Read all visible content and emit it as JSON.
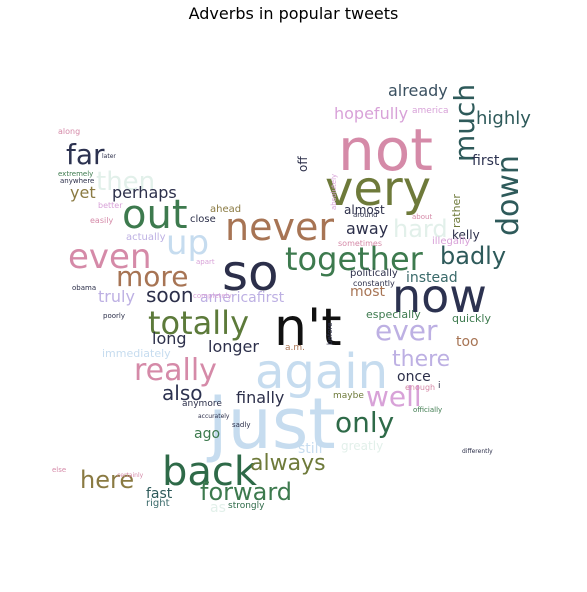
{
  "chart_data": {
    "type": "wordcloud",
    "title": "Adverbs in popular tweets",
    "words": [
      {
        "text": "just",
        "weight": 100,
        "color": "#c6dcef"
      },
      {
        "text": "not",
        "weight": 92,
        "color": "#d58aa8"
      },
      {
        "text": "very",
        "weight": 86,
        "color": "#6e7a3a"
      },
      {
        "text": "so",
        "weight": 84,
        "color": "#2c2f4a"
      },
      {
        "text": "n't",
        "weight": 84,
        "color": "#111111"
      },
      {
        "text": "now",
        "weight": 80,
        "color": "#2c3250"
      },
      {
        "text": "again",
        "weight": 80,
        "color": "#c6dcef"
      },
      {
        "text": "out",
        "weight": 70,
        "color": "#3d7a4e"
      },
      {
        "text": "never",
        "weight": 66,
        "color": "#a77454"
      },
      {
        "text": "together",
        "weight": 62,
        "color": "#3d7a4e"
      },
      {
        "text": "even",
        "weight": 60,
        "color": "#d58aa8"
      },
      {
        "text": "up",
        "weight": 58,
        "color": "#c6dcef"
      },
      {
        "text": "back",
        "weight": 58,
        "color": "#2e6a48"
      },
      {
        "text": "really",
        "weight": 54,
        "color": "#d58aa8"
      },
      {
        "text": "totally",
        "weight": 54,
        "color": "#5c7a3a"
      },
      {
        "text": "more",
        "weight": 50,
        "color": "#a77454"
      },
      {
        "text": "down",
        "weight": 48,
        "color": "#2e5a5a"
      },
      {
        "text": "far",
        "weight": 46,
        "color": "#2c3250"
      },
      {
        "text": "much",
        "weight": 44,
        "color": "#2e5a5a"
      },
      {
        "text": "well",
        "weight": 42,
        "color": "#d8a2d8"
      },
      {
        "text": "only",
        "weight": 42,
        "color": "#2e6a48"
      },
      {
        "text": "ever",
        "weight": 40,
        "color": "#bdb0e3"
      },
      {
        "text": "hard",
        "weight": 40,
        "color": "#e2f0ea"
      },
      {
        "text": "then",
        "weight": 38,
        "color": "#e2f0ea"
      },
      {
        "text": "badly",
        "weight": 38,
        "color": "#2e5a5a"
      },
      {
        "text": "forward",
        "weight": 38,
        "color": "#3d7a4e"
      },
      {
        "text": "here",
        "weight": 38,
        "color": "#8a7a42"
      },
      {
        "text": "always",
        "weight": 36,
        "color": "#6e7a3a"
      },
      {
        "text": "there",
        "weight": 32,
        "color": "#bdb0e3"
      },
      {
        "text": "soon",
        "weight": 32,
        "color": "#2c2f4a"
      },
      {
        "text": "also",
        "weight": 32,
        "color": "#2c3250"
      },
      {
        "text": "highly",
        "weight": 30,
        "color": "#2e5a5a"
      },
      {
        "text": "hopefully",
        "weight": 28,
        "color": "#d8a2d8"
      },
      {
        "text": "already",
        "weight": 28,
        "color": "#3a5060"
      },
      {
        "text": "perhaps",
        "weight": 28,
        "color": "#2c2f4a"
      },
      {
        "text": "finally",
        "weight": 28,
        "color": "#2c2f4a"
      },
      {
        "text": "yet",
        "weight": 26,
        "color": "#8a7a42"
      },
      {
        "text": "long",
        "weight": 26,
        "color": "#2c2f4a"
      },
      {
        "text": "away",
        "weight": 26,
        "color": "#2c2f4a"
      },
      {
        "text": "truly",
        "weight": 26,
        "color": "#bdb0e3"
      },
      {
        "text": "longer",
        "weight": 26,
        "color": "#2c2f4a"
      },
      {
        "text": "most",
        "weight": 24,
        "color": "#a77454"
      },
      {
        "text": "instead",
        "weight": 24,
        "color": "#3a6a6a"
      },
      {
        "text": "once",
        "weight": 24,
        "color": "#2c2f4a"
      },
      {
        "text": "too",
        "weight": 24,
        "color": "#a77454"
      },
      {
        "text": "first",
        "weight": 24,
        "color": "#2c3250"
      },
      {
        "text": "ago",
        "weight": 24,
        "color": "#3d7a4e"
      },
      {
        "text": "fast",
        "weight": 24,
        "color": "#2e5a5a"
      },
      {
        "text": "kelly",
        "weight": 22,
        "color": "#2c2f4a"
      },
      {
        "text": "americafirst",
        "weight": 22,
        "color": "#bdb0e3"
      },
      {
        "text": "still",
        "weight": 22,
        "color": "#c6dcef"
      },
      {
        "text": "almost",
        "weight": 22,
        "color": "#2c2f4a"
      },
      {
        "text": "as",
        "weight": 22,
        "color": "#e2f0ea"
      },
      {
        "text": "greatly",
        "weight": 20,
        "color": "#e2f0ea"
      },
      {
        "text": "off",
        "weight": 20,
        "color": "#2c2f4a"
      },
      {
        "text": "especially",
        "weight": 18,
        "color": "#3d7a4e"
      },
      {
        "text": "quickly",
        "weight": 18,
        "color": "#3d7a4e"
      },
      {
        "text": "immediately",
        "weight": 18,
        "color": "#c6dcef"
      },
      {
        "text": "rather",
        "weight": 18,
        "color": "#6e7a3a"
      },
      {
        "text": "illegally",
        "weight": 18,
        "color": "#d8a2d8"
      },
      {
        "text": "politically",
        "weight": 16,
        "color": "#2c2f4a"
      },
      {
        "text": "actually",
        "weight": 16,
        "color": "#bdb0e3"
      },
      {
        "text": "ahead",
        "weight": 16,
        "color": "#8a7a42"
      },
      {
        "text": "close",
        "weight": 16,
        "color": "#2c2f4a"
      },
      {
        "text": "right",
        "weight": 16,
        "color": "#3a6a6a"
      },
      {
        "text": "strongly",
        "weight": 16,
        "color": "#2e6a48"
      },
      {
        "text": "anymore",
        "weight": 16,
        "color": "#2c2f4a"
      },
      {
        "text": "maybe",
        "weight": 14,
        "color": "#6e7a3a"
      },
      {
        "text": "sometimes",
        "weight": 14,
        "color": "#d58aa8"
      },
      {
        "text": "constantly",
        "weight": 14,
        "color": "#2c2f4a"
      },
      {
        "text": "enough",
        "weight": 14,
        "color": "#d58aa8"
      },
      {
        "text": "america",
        "weight": 14,
        "color": "#d8a2d8"
      },
      {
        "text": "completely",
        "weight": 14,
        "color": "#d8a2d8"
      },
      {
        "text": "better",
        "weight": 14,
        "color": "#d8a2d8"
      },
      {
        "text": "easily",
        "weight": 14,
        "color": "#d58aa8"
      },
      {
        "text": "apart",
        "weight": 12,
        "color": "#d8a2d8"
      },
      {
        "text": "officially",
        "weight": 12,
        "color": "#3d7a4e"
      },
      {
        "text": "around",
        "weight": 12,
        "color": "#2c2f4a"
      },
      {
        "text": "about",
        "weight": 12,
        "color": "#d58aa8"
      },
      {
        "text": "poorly",
        "weight": 12,
        "color": "#2c2f4a"
      },
      {
        "text": "accurately",
        "weight": 12,
        "color": "#2c2f4a"
      },
      {
        "text": "obama",
        "weight": 12,
        "color": "#2c2f4a"
      },
      {
        "text": "along",
        "weight": 12,
        "color": "#d58aa8"
      },
      {
        "text": "extremely",
        "weight": 12,
        "color": "#3d7a4e"
      },
      {
        "text": "anywhere",
        "weight": 12,
        "color": "#2c2f4a"
      },
      {
        "text": "absolutely",
        "weight": 12,
        "color": "#d8a2d8"
      },
      {
        "text": "before",
        "weight": 12,
        "color": "#2c2f4a"
      },
      {
        "text": "sadly",
        "weight": 12,
        "color": "#2c2f4a"
      },
      {
        "text": "certainly",
        "weight": 12,
        "color": "#d58aa8"
      },
      {
        "text": "else",
        "weight": 12,
        "color": "#d58aa8"
      },
      {
        "text": "a.m.",
        "weight": 12,
        "color": "#a77454"
      },
      {
        "text": "i",
        "weight": 12,
        "color": "#2c2f4a"
      },
      {
        "text": "differently",
        "weight": 12,
        "color": "#2c2f4a"
      },
      {
        "text": "later",
        "weight": 12,
        "color": "#2c2f4a"
      }
    ]
  }
}
